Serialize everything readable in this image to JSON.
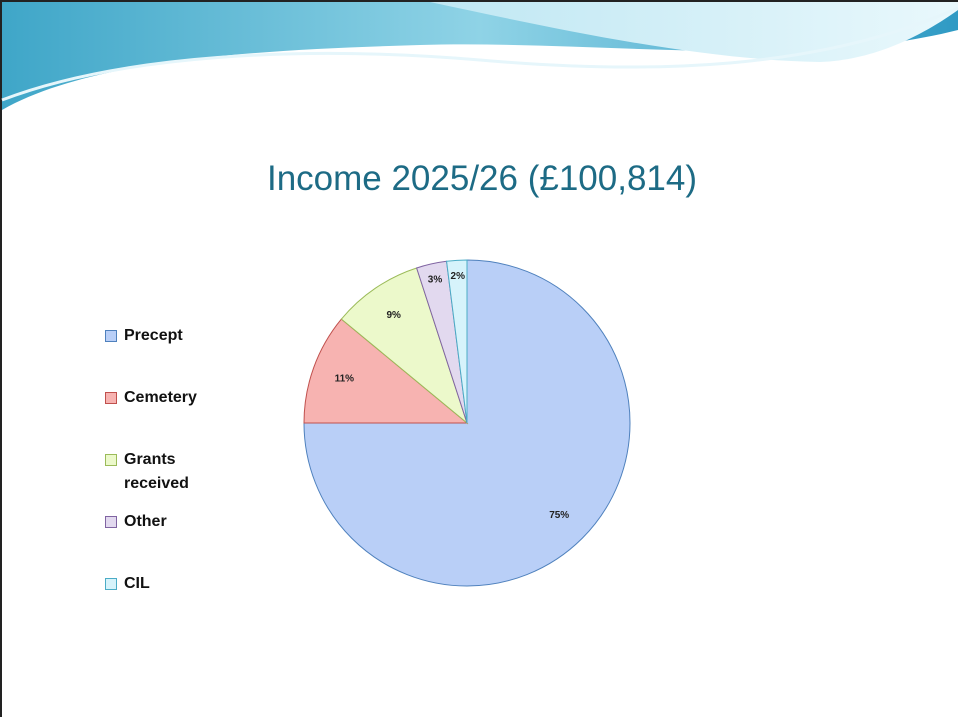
{
  "chart_data": {
    "type": "pie",
    "title": "Income 2025/26 (£100,814)",
    "categories": [
      "Precept",
      "Cemetery",
      "Grants received",
      "Other",
      "CIL"
    ],
    "values": [
      75,
      11,
      9,
      3,
      2
    ],
    "value_labels": [
      "75%",
      "11%",
      "9%",
      "3%",
      "2%"
    ],
    "colors": [
      "#b9cff7",
      "#f7b3b1",
      "#ecf9cb",
      "#e2d9ef",
      "#d6f3fb"
    ],
    "edgecolors": [
      "#4f81bd",
      "#c0504d",
      "#9bbb59",
      "#8064a2",
      "#4bacc6"
    ],
    "legend": "left"
  }
}
